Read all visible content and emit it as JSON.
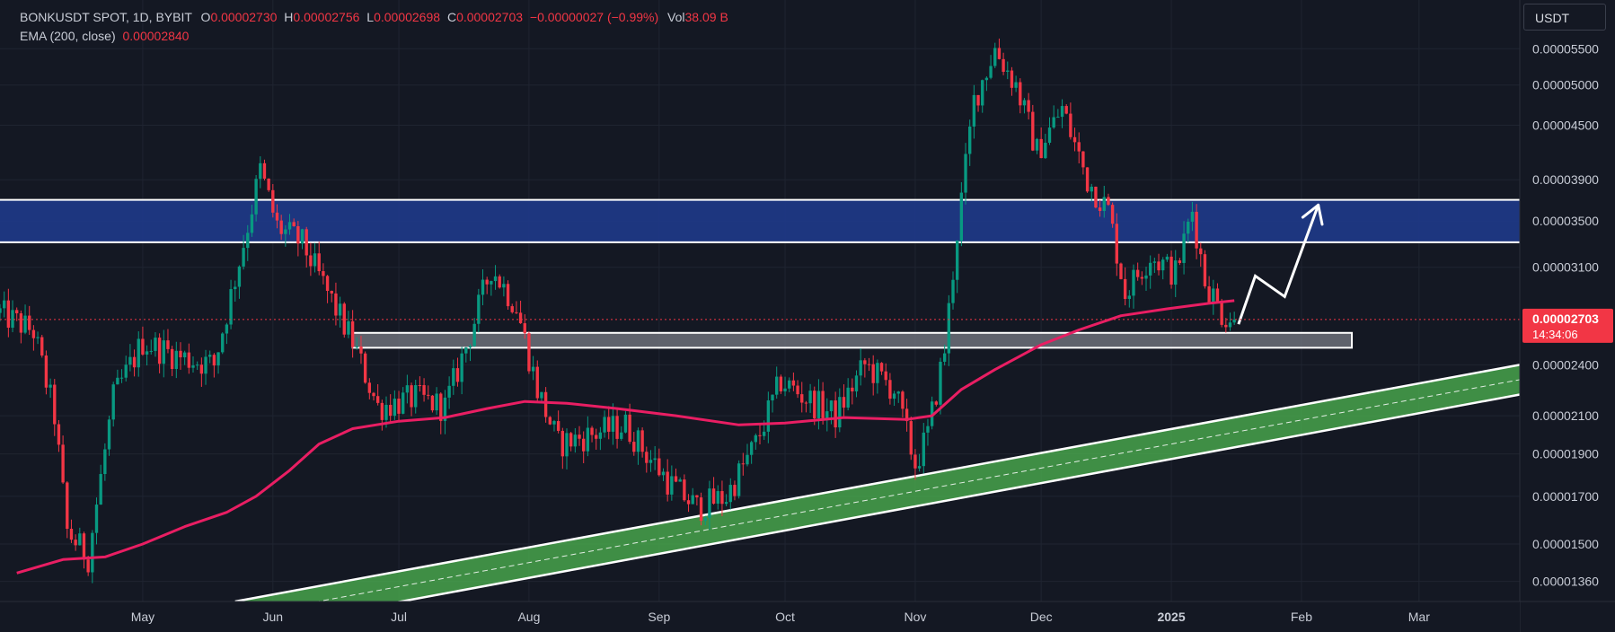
{
  "header": {
    "symbol": "BONKUSDT SPOT, 1D, BYBIT",
    "open_label": "O",
    "open": "0.00002730",
    "high_label": "H",
    "high": "0.00002756",
    "low_label": "L",
    "low": "0.00002698",
    "close_label": "C",
    "close": "0.00002703",
    "change": "−0.00000027 (−0.99%)",
    "vol_label": "Vol",
    "vol": "38.09 B",
    "ema_label": "EMA (200, close)",
    "ema_value": "0.00002840"
  },
  "currency_button": "USDT",
  "price_tag": {
    "value": "0.00002703",
    "countdown": "14:34:06"
  },
  "colors": {
    "background": "#141823",
    "bull": "#089981",
    "bear": "#f23645",
    "ema": "#e91e63",
    "resistance_zone": "#1e3a8a",
    "support_zone": "#787b86",
    "channel": "#4caf50",
    "price_tag": "#f23645"
  },
  "chart_data": {
    "type": "candlestick",
    "symbol": "BONKUSDT",
    "timeframe": "1D",
    "x_ticks": [
      {
        "date": "2024-05-01",
        "label": "May"
      },
      {
        "date": "2024-06-01",
        "label": "Jun"
      },
      {
        "date": "2024-07-01",
        "label": "Jul"
      },
      {
        "date": "2024-08-01",
        "label": "Aug"
      },
      {
        "date": "2024-09-01",
        "label": "Sep"
      },
      {
        "date": "2024-10-01",
        "label": "Oct"
      },
      {
        "date": "2024-11-01",
        "label": "Nov"
      },
      {
        "date": "2024-12-01",
        "label": "Dec"
      },
      {
        "date": "2025-01-01",
        "label": "2025"
      },
      {
        "date": "2025-02-01",
        "label": "Feb"
      },
      {
        "date": "2025-03-01",
        "label": "Mar"
      }
    ],
    "y_ticks": [
      "0.00005500",
      "0.00005000",
      "0.00004500",
      "0.00003900",
      "0.00003500",
      "0.00003100",
      "0.00002400",
      "0.00002100",
      "0.00001900",
      "0.00001700",
      "0.00001500",
      "0.00001360"
    ],
    "y_scale": "log",
    "ylim": [
      1.29e-05,
      6.25e-05
    ],
    "xlim": [
      "2024-03-28",
      "2025-03-25"
    ],
    "grid": true,
    "close_path": [
      [
        "2024-03-28",
        2.75e-05
      ],
      [
        "2024-04-05",
        2.62e-05
      ],
      [
        "2024-04-10",
        2.1e-05
      ],
      [
        "2024-04-13",
        1.55e-05
      ],
      [
        "2024-04-18",
        1.45e-05
      ],
      [
        "2024-04-24",
        2.2e-05
      ],
      [
        "2024-05-01",
        2.55e-05
      ],
      [
        "2024-05-10",
        2.45e-05
      ],
      [
        "2024-05-18",
        2.4e-05
      ],
      [
        "2024-05-25",
        3.3e-05
      ],
      [
        "2024-05-29",
        4e-05
      ],
      [
        "2024-06-02",
        3.45e-05
      ],
      [
        "2024-06-08",
        3.3e-05
      ],
      [
        "2024-06-14",
        2.9e-05
      ],
      [
        "2024-06-20",
        2.55e-05
      ],
      [
        "2024-06-26",
        2.15e-05
      ],
      [
        "2024-07-05",
        2.2e-05
      ],
      [
        "2024-07-12",
        2.15e-05
      ],
      [
        "2024-07-18",
        2.6e-05
      ],
      [
        "2024-07-23",
        3.1e-05
      ],
      [
        "2024-07-29",
        2.8e-05
      ],
      [
        "2024-08-03",
        2.25e-05
      ],
      [
        "2024-08-08",
        1.95e-05
      ],
      [
        "2024-08-16",
        2e-05
      ],
      [
        "2024-08-24",
        2.05e-05
      ],
      [
        "2024-08-29",
        1.9e-05
      ],
      [
        "2024-09-04",
        1.75e-05
      ],
      [
        "2024-09-10",
        1.65e-05
      ],
      [
        "2024-09-17",
        1.7e-05
      ],
      [
        "2024-09-24",
        1.95e-05
      ],
      [
        "2024-09-30",
        2.3e-05
      ],
      [
        "2024-10-06",
        2.2e-05
      ],
      [
        "2024-10-13",
        2.1e-05
      ],
      [
        "2024-10-20",
        2.4e-05
      ],
      [
        "2024-10-27",
        2.25e-05
      ],
      [
        "2024-11-01",
        1.85e-05
      ],
      [
        "2024-11-04",
        2e-05
      ],
      [
        "2024-11-08",
        2.5e-05
      ],
      [
        "2024-11-11",
        3.4e-05
      ],
      [
        "2024-11-15",
        4.8e-05
      ],
      [
        "2024-11-20",
        5.5e-05
      ],
      [
        "2024-11-25",
        5e-05
      ],
      [
        "2024-11-30",
        4.2e-05
      ],
      [
        "2024-12-06",
        4.7e-05
      ],
      [
        "2024-12-12",
        3.9e-05
      ],
      [
        "2024-12-17",
        3.6e-05
      ],
      [
        "2024-12-21",
        2.9e-05
      ],
      [
        "2024-12-27",
        3.2e-05
      ],
      [
        "2025-01-02",
        3.05e-05
      ],
      [
        "2025-01-06",
        3.6e-05
      ],
      [
        "2025-01-09",
        3e-05
      ],
      [
        "2025-01-13",
        2.75e-05
      ],
      [
        "2025-01-16",
        2.7e-05
      ]
    ],
    "ema200": [
      [
        "2024-04-01",
        1.39e-05
      ],
      [
        "2024-04-12",
        1.44e-05
      ],
      [
        "2024-04-22",
        1.45e-05
      ],
      [
        "2024-05-01",
        1.5e-05
      ],
      [
        "2024-05-11",
        1.57e-05
      ],
      [
        "2024-05-21",
        1.63e-05
      ],
      [
        "2024-05-28",
        1.7e-05
      ],
      [
        "2024-06-05",
        1.82e-05
      ],
      [
        "2024-06-12",
        1.95e-05
      ],
      [
        "2024-06-20",
        2.03e-05
      ],
      [
        "2024-07-01",
        2.07e-05
      ],
      [
        "2024-07-12",
        2.09e-05
      ],
      [
        "2024-07-22",
        2.14e-05
      ],
      [
        "2024-07-31",
        2.18e-05
      ],
      [
        "2024-08-10",
        2.17e-05
      ],
      [
        "2024-08-22",
        2.14e-05
      ],
      [
        "2024-09-05",
        2.1e-05
      ],
      [
        "2024-09-20",
        2.05e-05
      ],
      [
        "2024-10-01",
        2.06e-05
      ],
      [
        "2024-10-15",
        2.09e-05
      ],
      [
        "2024-10-30",
        2.08e-05
      ],
      [
        "2024-11-05",
        2.1e-05
      ],
      [
        "2024-11-12",
        2.25e-05
      ],
      [
        "2024-11-20",
        2.37e-05
      ],
      [
        "2024-12-01",
        2.53e-05
      ],
      [
        "2024-12-10",
        2.63e-05
      ],
      [
        "2024-12-20",
        2.73e-05
      ],
      [
        "2024-12-31",
        2.78e-05
      ],
      [
        "2025-01-10",
        2.82e-05
      ],
      [
        "2025-01-16",
        2.84e-05
      ]
    ],
    "zones": [
      {
        "kind": "resistance",
        "from": "2024-03-28",
        "to": "2025-03-25",
        "top": 3.7e-05,
        "bottom": 3.31e-05
      },
      {
        "kind": "support",
        "from": "2024-06-20",
        "to": "2025-02-13",
        "top": 2.61e-05,
        "bottom": 2.51e-05
      }
    ],
    "ascending_channel": {
      "upper_start": [
        "2024-05-23",
        1.29e-05
      ],
      "upper_end": [
        "2025-03-25",
        2.4e-05
      ],
      "lower_start": [
        "2024-05-23",
        1.19e-05
      ],
      "lower_end": [
        "2025-03-25",
        2.22e-05
      ]
    },
    "projection_arrow": [
      [
        "2025-01-17",
        2.67e-05
      ],
      [
        "2025-01-21",
        3.03e-05
      ],
      [
        "2025-01-28",
        2.87e-05
      ],
      [
        "2025-02-05",
        3.65e-05
      ]
    ],
    "last_price": 2.703e-05
  }
}
